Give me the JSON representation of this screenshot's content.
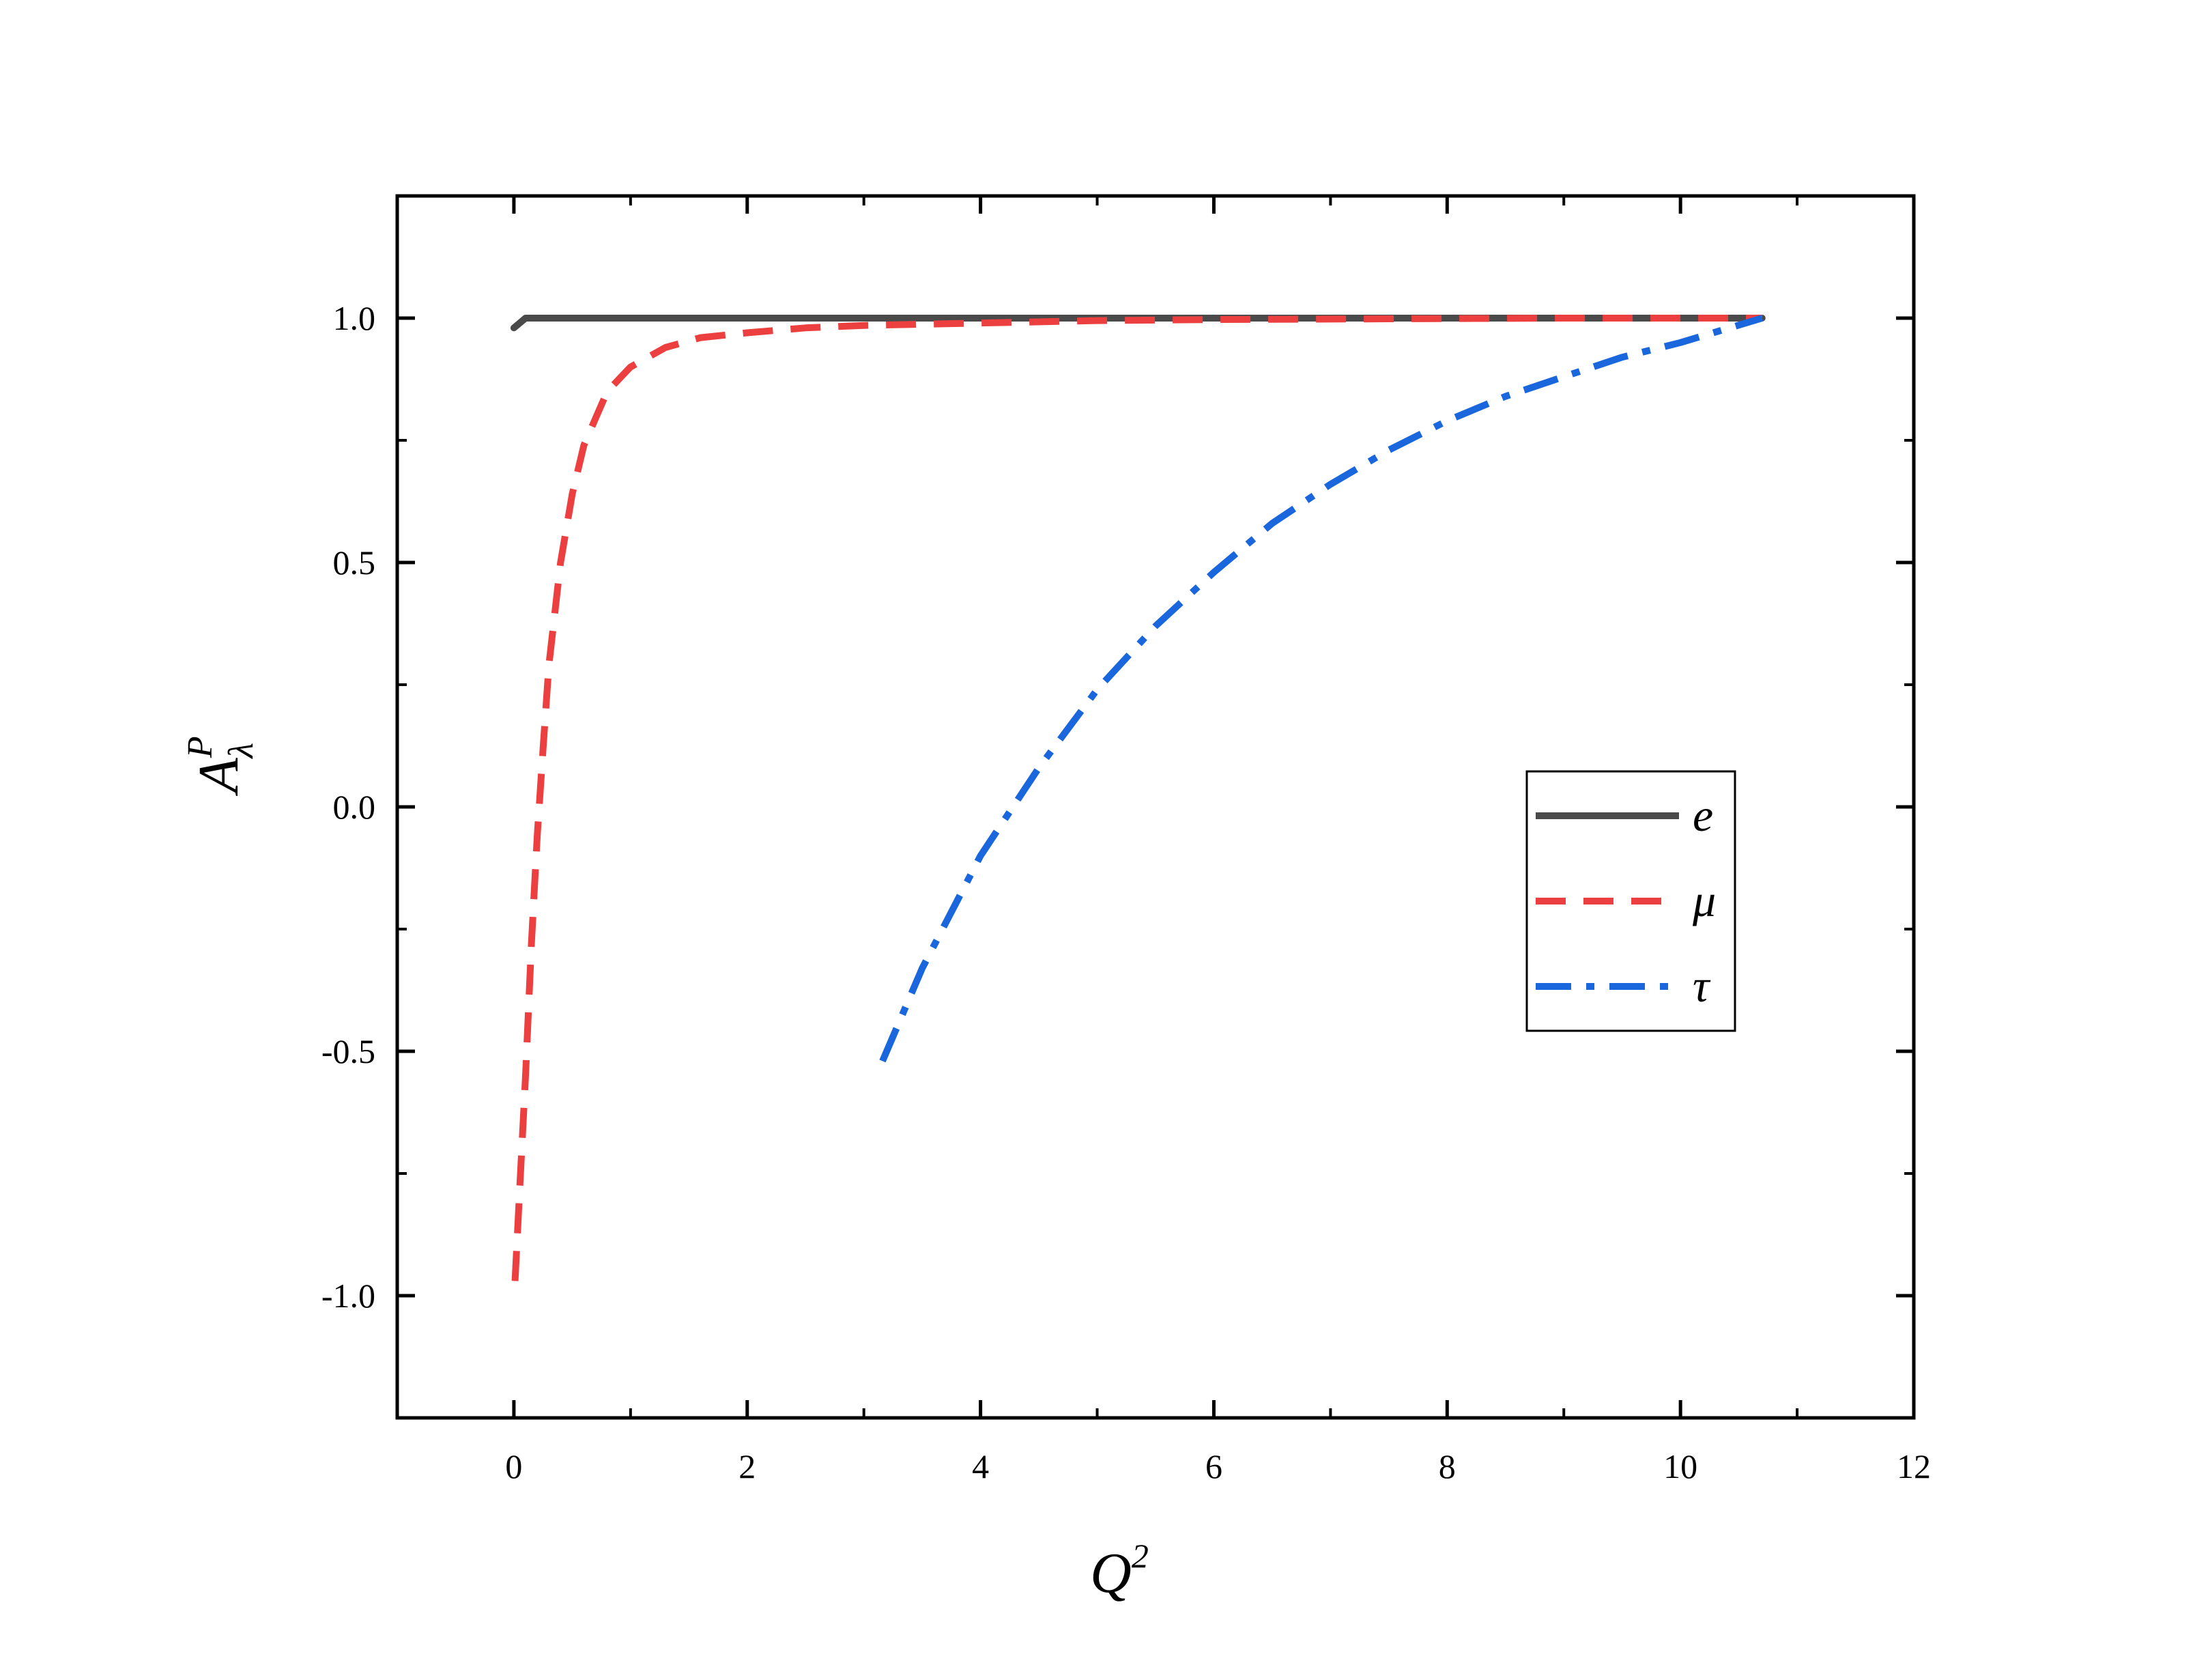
{
  "chart_data": {
    "type": "line",
    "xlabel": {
      "base": "Q",
      "sup": "2"
    },
    "ylabel": {
      "base": "A",
      "sup": "P",
      "sub": "λ"
    },
    "xlim": [
      -1,
      12
    ],
    "ylim": [
      -1.25,
      1.25
    ],
    "x_ticks": [
      0,
      2,
      4,
      6,
      8,
      10,
      12
    ],
    "x_tick_labels": [
      "0",
      "2",
      "4",
      "6",
      "8",
      "10",
      "12"
    ],
    "y_ticks": [
      -1.0,
      -0.5,
      0.0,
      0.5,
      1.0
    ],
    "y_tick_labels": [
      "-1.0",
      "-0.5",
      "0.0",
      "0.5",
      "1.0"
    ],
    "grid": false,
    "legend_position": "right",
    "series": [
      {
        "name": "e",
        "color": "#4a4a4a",
        "dash": "solid",
        "x": [
          0.0,
          0.05,
          0.1,
          0.3,
          1,
          2,
          4,
          6,
          8,
          10,
          10.7
        ],
        "y": [
          0.98,
          0.99,
          1.0,
          1.0,
          1.0,
          1.0,
          1.0,
          1.0,
          1.0,
          1.0,
          1.0
        ]
      },
      {
        "name": "μ",
        "color": "#ec4040",
        "dash": "dashed",
        "x": [
          0.01,
          0.05,
          0.1,
          0.15,
          0.2,
          0.25,
          0.3,
          0.4,
          0.5,
          0.6,
          0.8,
          1.0,
          1.3,
          1.6,
          2.0,
          2.5,
          3.0,
          4.0,
          5.0,
          6.0,
          7.0,
          8.0,
          9.0,
          10.0,
          10.7
        ],
        "y": [
          -0.97,
          -0.78,
          -0.55,
          -0.28,
          -0.06,
          0.12,
          0.29,
          0.5,
          0.64,
          0.74,
          0.85,
          0.9,
          0.94,
          0.96,
          0.97,
          0.98,
          0.985,
          0.99,
          0.995,
          0.997,
          0.998,
          0.999,
          1.0,
          1.0,
          1.0
        ]
      },
      {
        "name": "τ",
        "color": "#1a66dd",
        "dash": "dashdot",
        "x": [
          3.16,
          3.5,
          4.0,
          4.5,
          5.0,
          5.5,
          6.0,
          6.5,
          7.0,
          7.5,
          8.0,
          8.5,
          9.0,
          9.5,
          10.0,
          10.7
        ],
        "y": [
          -0.52,
          -0.33,
          -0.1,
          0.08,
          0.24,
          0.37,
          0.48,
          0.58,
          0.66,
          0.73,
          0.79,
          0.84,
          0.88,
          0.92,
          0.95,
          1.0
        ]
      }
    ]
  }
}
